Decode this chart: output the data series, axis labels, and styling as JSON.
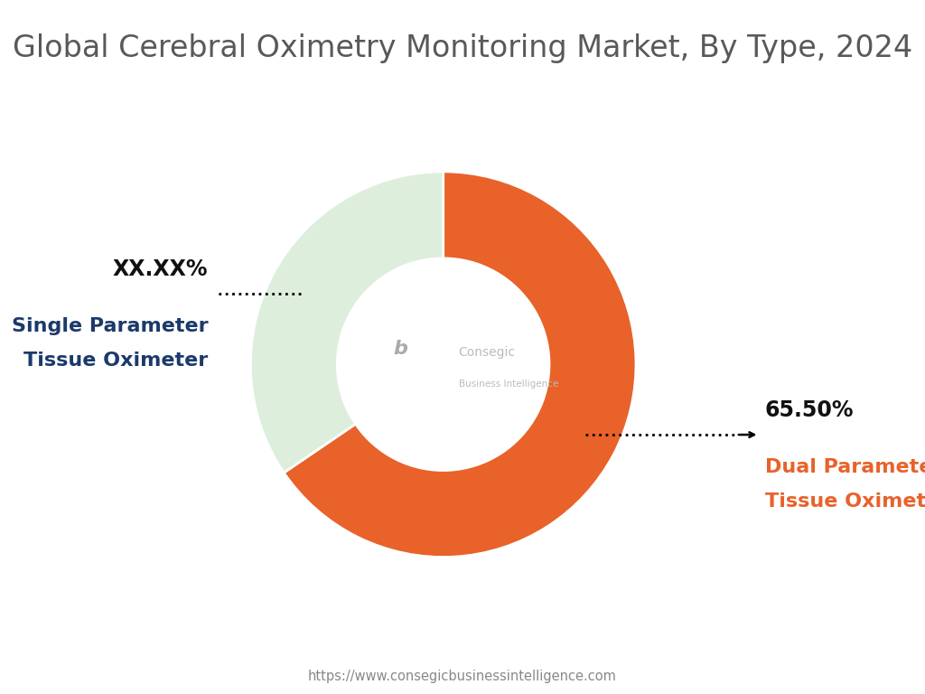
{
  "title": "Global Cerebral Oximetry Monitoring Market, By Type, 2024",
  "slices": [
    {
      "label": "Dual Parameter\nTissue Oximeter",
      "value": 65.5,
      "color": "#E8622A"
    },
    {
      "label": "Single Parameter\nTissue Oximeter",
      "value": 34.5,
      "color": "#DDEEDD"
    }
  ],
  "label_dual_pct": "65.50%",
  "label_single_pct": "XX.XX%",
  "center_line1": "Consegic",
  "center_line2": "Business Intelligence",
  "footer_url": "https://www.consegicbusinessintelligence.com",
  "bg_color": "#FFFFFF",
  "title_color": "#595959",
  "dual_label_color": "#E8622A",
  "single_label_color": "#1B3A6B",
  "pct_color": "#111111",
  "title_fontsize": 24,
  "label_fontsize": 16,
  "pct_fontsize": 17
}
